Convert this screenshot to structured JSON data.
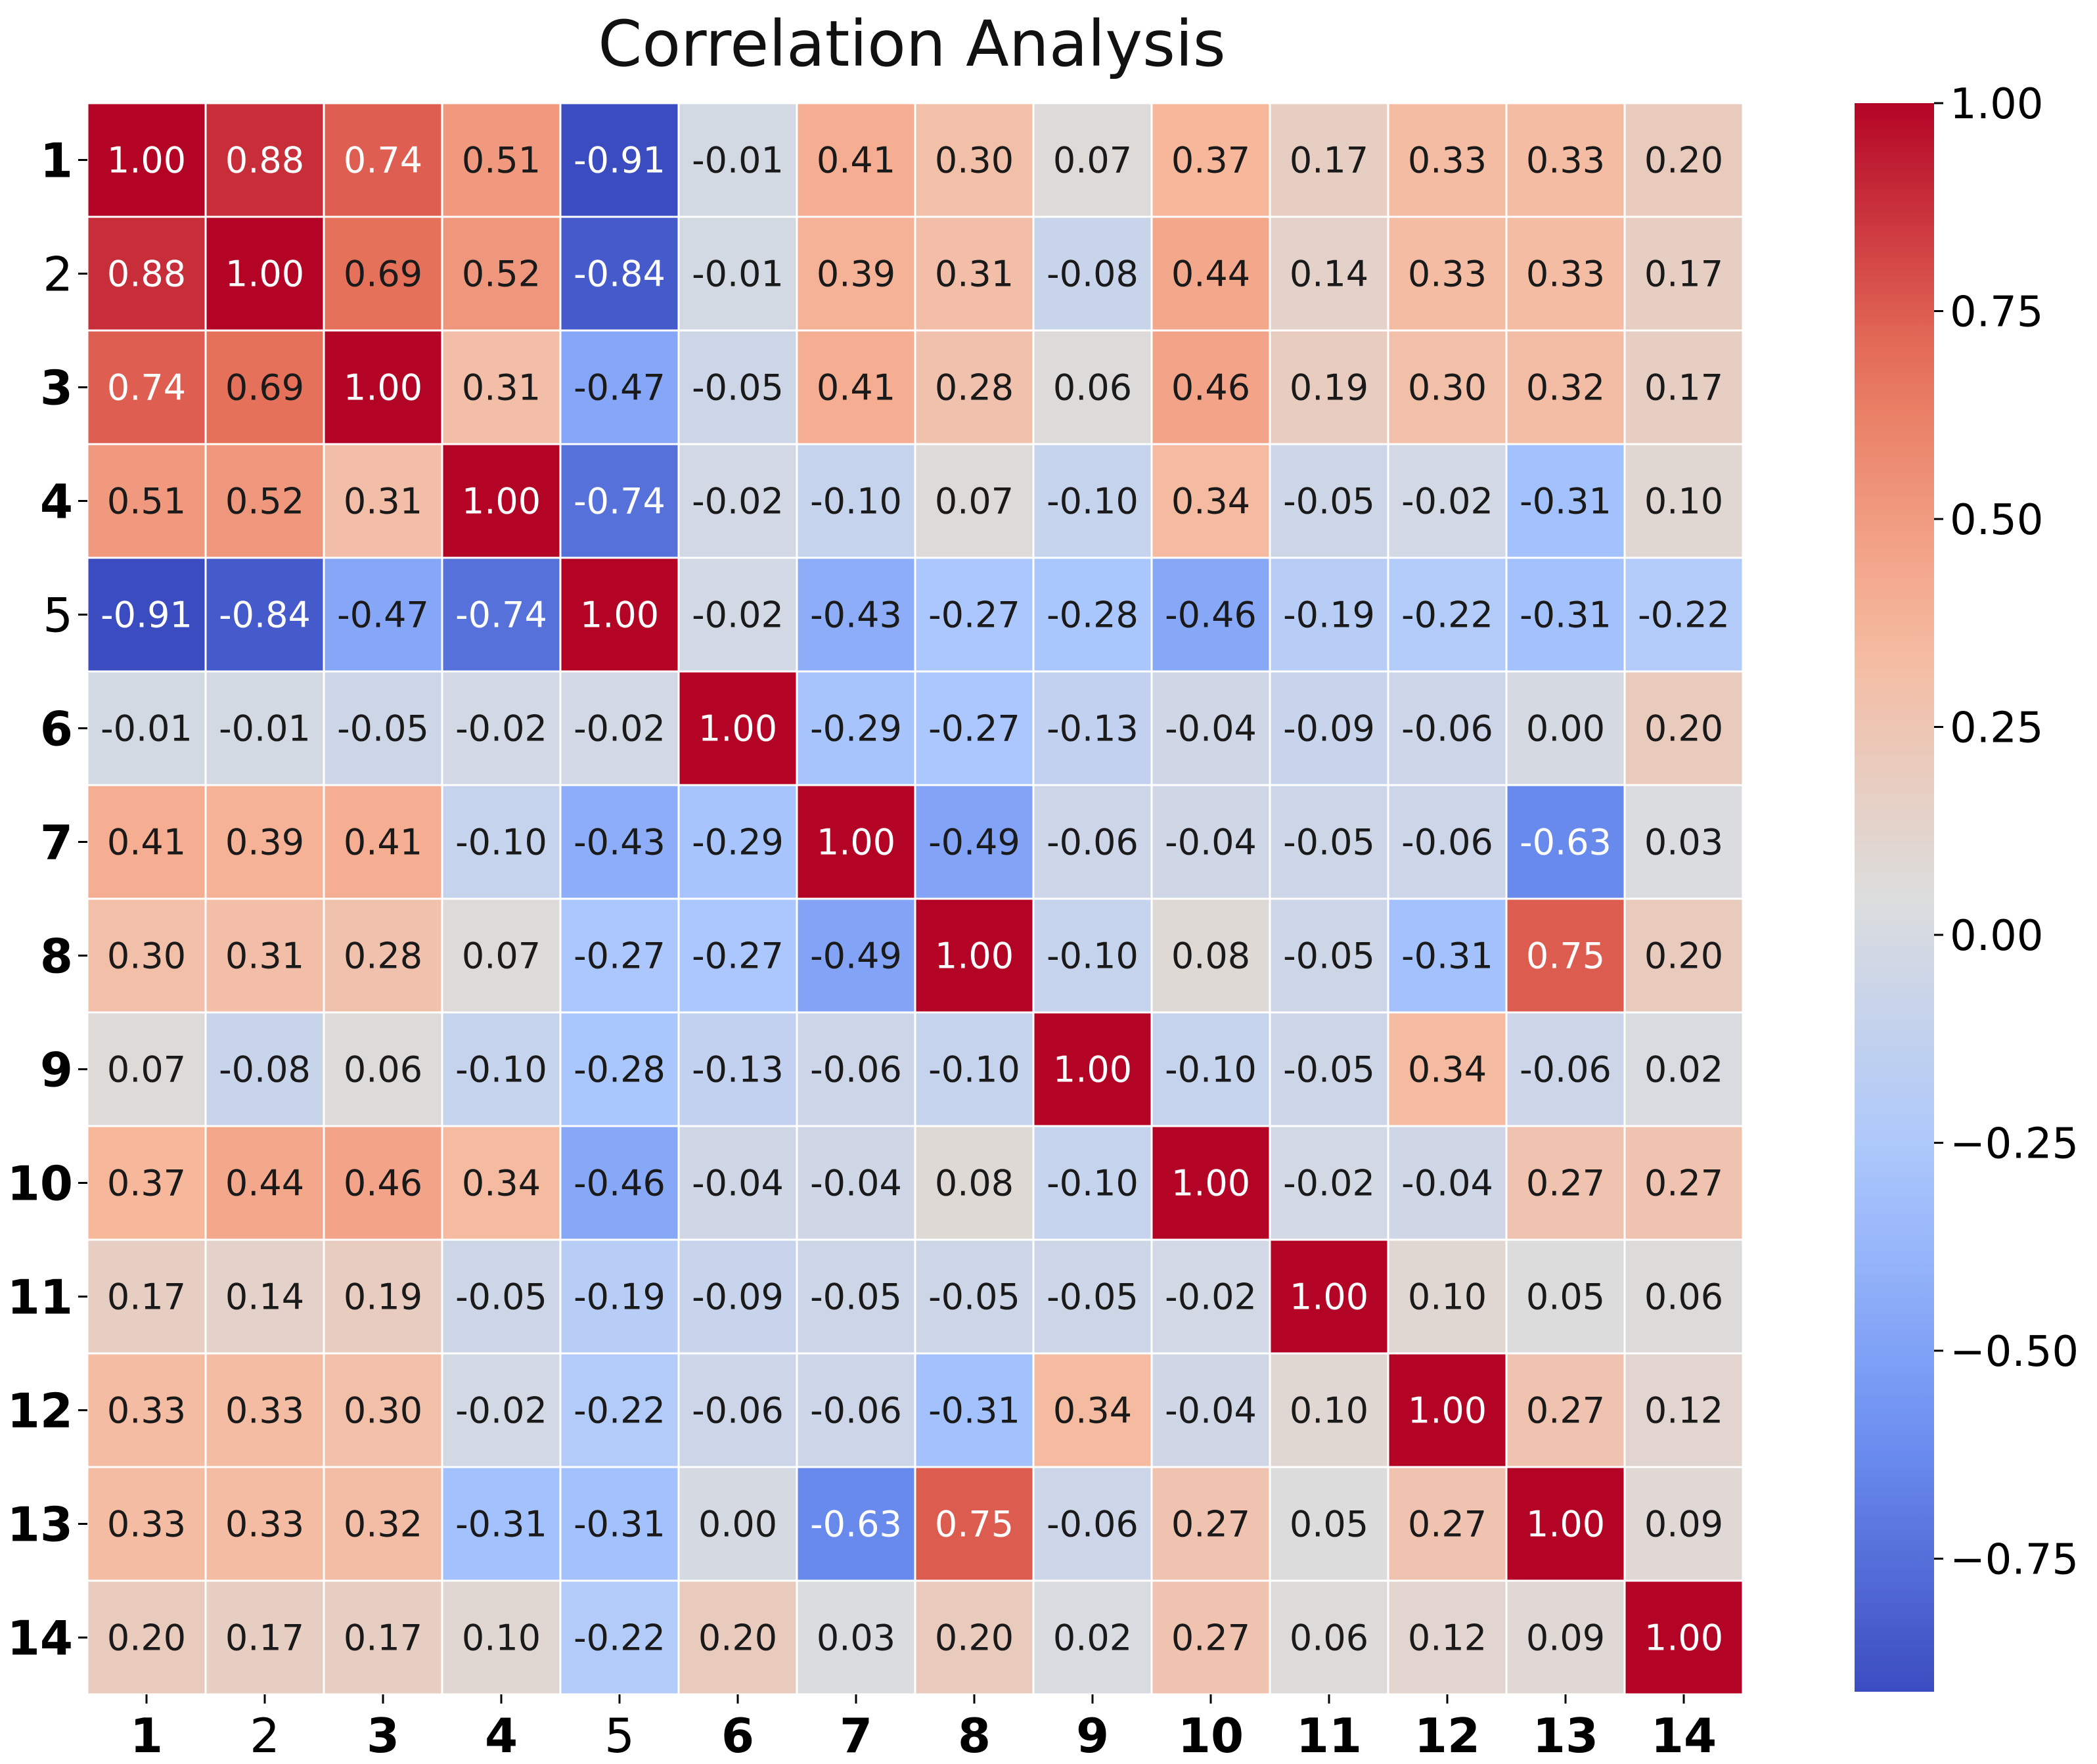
{
  "chart_data": {
    "type": "heatmap",
    "title": "Correlation Analysis",
    "xlabel": "",
    "ylabel": "",
    "x_labels": [
      "1",
      "2",
      "3",
      "4",
      "5",
      "6",
      "7",
      "8",
      "9",
      "10",
      "11",
      "12",
      "13",
      "14"
    ],
    "y_labels": [
      "1",
      "2",
      "3",
      "4",
      "5",
      "6",
      "7",
      "8",
      "9",
      "10",
      "11",
      "12",
      "13",
      "14"
    ],
    "bold_labels": [
      "1",
      "3",
      "4",
      "6",
      "7",
      "8",
      "9",
      "10",
      "11",
      "12",
      "13",
      "14"
    ],
    "colormap": "coolwarm",
    "vmin": -0.91,
    "vmax": 1.0,
    "matrix": [
      [
        1.0,
        0.88,
        0.74,
        0.51,
        -0.91,
        -0.01,
        0.41,
        0.3,
        0.07,
        0.37,
        0.17,
        0.33,
        0.33,
        0.2
      ],
      [
        0.88,
        1.0,
        0.69,
        0.52,
        -0.84,
        -0.01,
        0.39,
        0.31,
        -0.08,
        0.44,
        0.14,
        0.33,
        0.33,
        0.17
      ],
      [
        0.74,
        0.69,
        1.0,
        0.31,
        -0.47,
        -0.05,
        0.41,
        0.28,
        0.06,
        0.46,
        0.19,
        0.3,
        0.32,
        0.17
      ],
      [
        0.51,
        0.52,
        0.31,
        1.0,
        -0.74,
        -0.02,
        -0.1,
        0.07,
        -0.1,
        0.34,
        -0.05,
        -0.02,
        -0.31,
        0.1
      ],
      [
        -0.91,
        -0.84,
        -0.47,
        -0.74,
        1.0,
        -0.02,
        -0.43,
        -0.27,
        -0.28,
        -0.46,
        -0.19,
        -0.22,
        -0.31,
        -0.22
      ],
      [
        -0.01,
        -0.01,
        -0.05,
        -0.02,
        -0.02,
        1.0,
        -0.29,
        -0.27,
        -0.13,
        -0.04,
        -0.09,
        -0.06,
        0.0,
        0.2
      ],
      [
        0.41,
        0.39,
        0.41,
        -0.1,
        -0.43,
        -0.29,
        1.0,
        -0.49,
        -0.06,
        -0.04,
        -0.05,
        -0.06,
        -0.63,
        0.03
      ],
      [
        0.3,
        0.31,
        0.28,
        0.07,
        -0.27,
        -0.27,
        -0.49,
        1.0,
        -0.1,
        0.08,
        -0.05,
        -0.31,
        0.75,
        0.2
      ],
      [
        0.07,
        -0.08,
        0.06,
        -0.1,
        -0.28,
        -0.13,
        -0.06,
        -0.1,
        1.0,
        -0.1,
        -0.05,
        0.34,
        -0.06,
        0.02
      ],
      [
        0.37,
        0.44,
        0.46,
        0.34,
        -0.46,
        -0.04,
        -0.04,
        0.08,
        -0.1,
        1.0,
        -0.02,
        -0.04,
        0.27,
        0.27
      ],
      [
        0.17,
        0.14,
        0.19,
        -0.05,
        -0.19,
        -0.09,
        -0.05,
        -0.05,
        -0.05,
        -0.02,
        1.0,
        0.1,
        0.05,
        0.06
      ],
      [
        0.33,
        0.33,
        0.3,
        -0.02,
        -0.22,
        -0.06,
        -0.06,
        -0.31,
        0.34,
        -0.04,
        0.1,
        1.0,
        0.27,
        0.12
      ],
      [
        0.33,
        0.33,
        0.32,
        -0.31,
        -0.31,
        0.0,
        -0.63,
        0.75,
        -0.06,
        0.27,
        0.05,
        0.27,
        1.0,
        0.09
      ],
      [
        0.2,
        0.17,
        0.17,
        0.1,
        -0.22,
        0.2,
        0.03,
        0.2,
        0.02,
        0.27,
        0.06,
        0.12,
        0.09,
        1.0
      ]
    ],
    "cell_format": "0.00",
    "colorbar": {
      "ticks": [
        1.0,
        0.75,
        0.5,
        0.25,
        0.0,
        -0.25,
        -0.5,
        -0.75
      ],
      "tick_labels": [
        "1.00",
        "0.75",
        "0.50",
        "0.25",
        "0.00",
        "−0.25",
        "−0.50",
        "−0.75"
      ]
    },
    "grid": true,
    "legend": "colorbar-right"
  },
  "colors": {
    "cmap_stops": [
      "#3b4cc0",
      "#6f92f3",
      "#aac7fd",
      "#dcdddd",
      "#f7b89c",
      "#e7745b",
      "#b40426"
    ],
    "grid_line": "#ffffff",
    "text_dark": "#1a1a1a",
    "text_light": "#ffffff"
  }
}
